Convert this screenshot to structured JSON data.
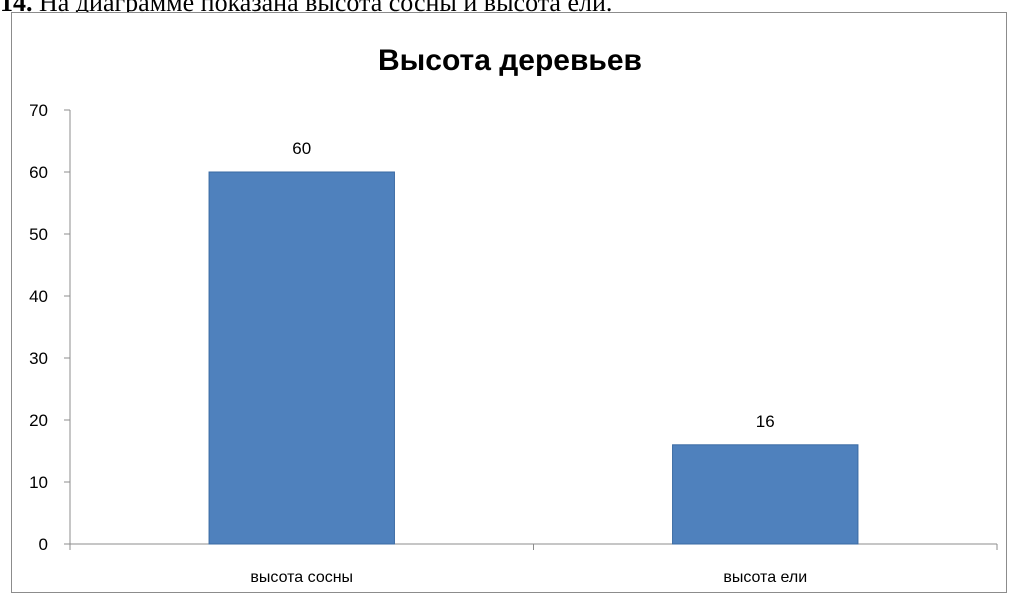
{
  "question": {
    "number": "14.",
    "text": " На диаграмме показана высота сосны и высота ели."
  },
  "chart_data": {
    "type": "bar",
    "title": "Высота деревьев",
    "categories": [
      "высота сосны",
      "высота ели"
    ],
    "values": [
      60,
      16
    ],
    "data_labels": [
      "60",
      "16"
    ],
    "xlabel": "",
    "ylabel": "",
    "ylim": [
      0,
      70
    ],
    "yticks": [
      "0",
      "10",
      "20",
      "30",
      "40",
      "50",
      "60",
      "70"
    ],
    "grid": false,
    "legend": "none",
    "bar_color": "#4f81bd"
  }
}
